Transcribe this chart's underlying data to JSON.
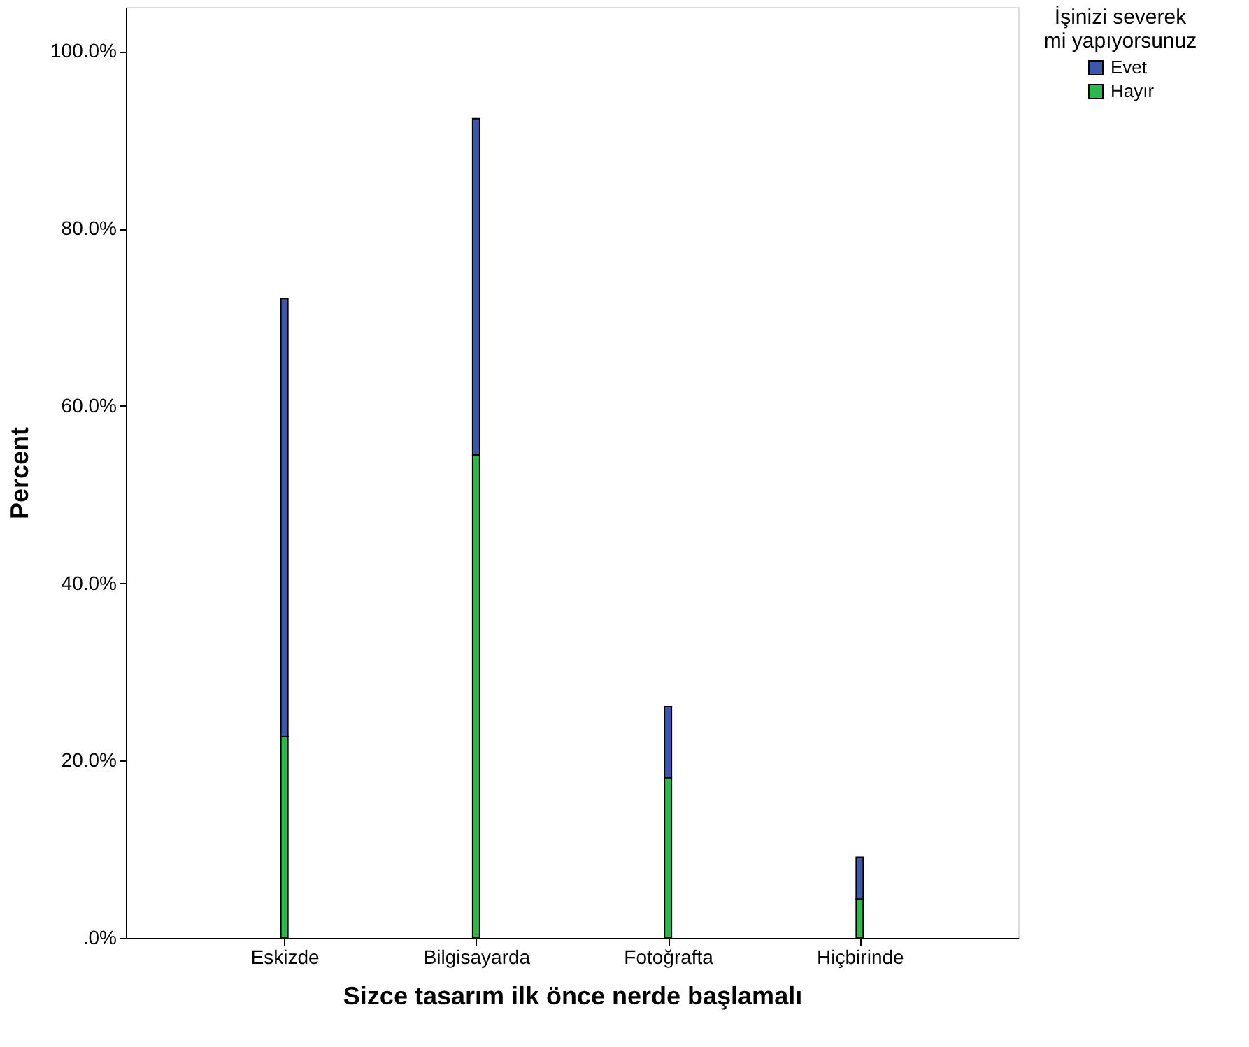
{
  "chart_data": {
    "type": "bar",
    "stacked": true,
    "xlabel": "Sizce tasarım ilk önce nerde başlamalı",
    "ylabel": "Percent",
    "legend_title": "İşinizi severek mi yapıyorsunuz",
    "categories": [
      "Eskizde",
      "Bilgisayarda",
      "Fotoğrafta",
      "Hiçbirinde"
    ],
    "series": [
      {
        "name": "Hayır",
        "color": "#2db84b",
        "values": [
          22.7,
          54.5,
          18.1,
          4.4
        ]
      },
      {
        "name": "Evet",
        "color": "#3c58ad",
        "values": [
          49.4,
          37.9,
          8.0,
          4.7
        ]
      }
    ],
    "ylim": [
      0,
      105
    ],
    "yticks": [
      {
        "value": 0,
        "label": ".0%"
      },
      {
        "value": 20,
        "label": "20.0%"
      },
      {
        "value": 40,
        "label": "40.0%"
      },
      {
        "value": 60,
        "label": "60.0%"
      },
      {
        "value": 80,
        "label": "80.0%"
      },
      {
        "value": 100,
        "label": "100.0%"
      }
    ],
    "grid": false,
    "legend": "top right"
  }
}
